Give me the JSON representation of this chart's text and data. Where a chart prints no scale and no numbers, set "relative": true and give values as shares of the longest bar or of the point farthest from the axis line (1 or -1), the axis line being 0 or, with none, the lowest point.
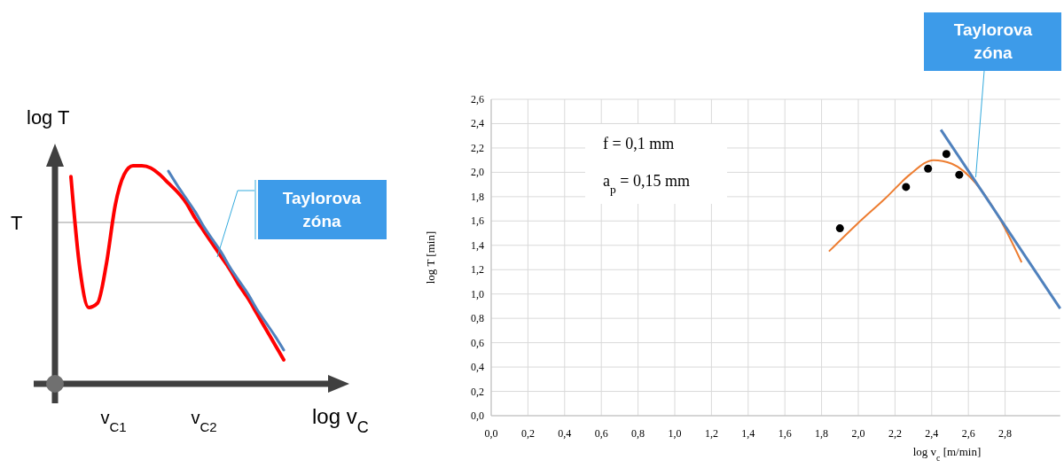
{
  "chart_data": [
    {
      "type": "line",
      "relative": true,
      "xlabel": "log v$_{C}$",
      "ylabel": "log T",
      "categories": [
        null,
        null,
        null,
        null,
        null,
        null,
        null,
        null,
        null,
        null,
        null,
        null,
        null,
        null,
        null,
        null,
        null,
        null,
        null,
        null,
        null,
        null,
        null,
        null,
        null
      ],
      "series": [
        {
          "color": "#ff0000",
          "values": [
            0.95,
            0.53,
            0.35,
            0.37,
            0.55,
            0.82,
            0.96,
            1.0,
            1.0,
            0.99,
            0.96,
            0.92,
            0.88,
            0.83,
            0.76,
            0.7,
            0.64,
            0.58,
            0.52,
            0.45,
            0.39,
            0.32,
            0.25,
            0.18,
            0.11
          ]
        },
        {
          "color": "#4f81bd",
          "values": [
            null,
            null,
            null,
            null,
            null,
            null,
            null,
            null,
            null,
            null,
            null,
            0.975,
            0.91,
            0.85,
            0.79,
            0.72,
            0.66,
            0.6,
            0.53,
            0.47,
            0.41,
            0.34,
            0.28,
            0.22,
            0.155
          ]
        }
      ],
      "ref_lines": [
        {
          "axis": "y",
          "value": 0.74,
          "label": "T",
          "color": "#808080"
        }
      ],
      "annotations": [
        "v$_{C1}$",
        "v$_{C2}$",
        "Taylorova zóna"
      ]
    },
    {
      "type": "scatter",
      "xlabel": "log v$_{c}$ [m/min]",
      "ylabel": "log T [min]",
      "grid": true,
      "xlim": [
        0,
        3.1
      ],
      "ylim": [
        0,
        2.6
      ],
      "xticks": [
        {
          "value": 0,
          "label": "0,0"
        },
        {
          "value": 0.2,
          "label": "0,2"
        },
        {
          "value": 0.4,
          "label": "0,4"
        },
        {
          "value": 0.6,
          "label": "0,6"
        },
        {
          "value": 0.8,
          "label": "0,8"
        },
        {
          "value": 1,
          "label": "1,0"
        },
        {
          "value": 1.2,
          "label": "1,2"
        },
        {
          "value": 1.4,
          "label": "1,4"
        },
        {
          "value": 1.6,
          "label": "1,6"
        },
        {
          "value": 1.8,
          "label": "1,8"
        },
        {
          "value": 2,
          "label": "2,0"
        },
        {
          "value": 2.2,
          "label": "2,2"
        },
        {
          "value": 2.4,
          "label": "2,4"
        },
        {
          "value": 2.6,
          "label": "2,6"
        },
        {
          "value": 2.8,
          "label": "2,8"
        }
      ],
      "yticks": [
        {
          "value": 0,
          "label": "0,0"
        },
        {
          "value": 0.2,
          "label": "0,2"
        },
        {
          "value": 0.4,
          "label": "0,4"
        },
        {
          "value": 0.6,
          "label": "0,6"
        },
        {
          "value": 0.8,
          "label": "0,8"
        },
        {
          "value": 1,
          "label": "1,0"
        },
        {
          "value": 1.2,
          "label": "1,2"
        },
        {
          "value": 1.4,
          "label": "1,4"
        },
        {
          "value": 1.6,
          "label": "1,6"
        },
        {
          "value": 1.8,
          "label": "1,8"
        },
        {
          "value": 2,
          "label": "2,0"
        },
        {
          "value": 2.2,
          "label": "2,2"
        },
        {
          "value": 2.4,
          "label": "2,4"
        },
        {
          "value": 2.6,
          "label": "2,6"
        }
      ],
      "series": [
        {
          "type": "scatter",
          "color": "#000000",
          "marker": "circle",
          "x": [
            1.9,
            2.26,
            2.38,
            2.48,
            2.55
          ],
          "values": [
            1.54,
            1.88,
            2.03,
            2.15,
            1.98
          ]
        },
        {
          "type": "line",
          "color": "#ed7d31",
          "x": [
            1.84,
            1.99,
            2.15,
            2.28,
            2.41,
            2.51,
            2.64,
            2.77,
            2.89
          ],
          "values": [
            1.35,
            1.57,
            1.79,
            1.98,
            2.1,
            2.07,
            1.91,
            1.62,
            1.26
          ]
        },
        {
          "type": "line",
          "color": "#4f81bd",
          "x": [
            2.45,
            3.1
          ],
          "values": [
            2.35,
            0.88
          ]
        }
      ],
      "annotations": [
        "f = 0,1 mm",
        "a$_{p}$ = 0,15 mm",
        {
          "text": "Taylorova zóna",
          "x": 2.64,
          "y": 1.96
        }
      ]
    }
  ]
}
